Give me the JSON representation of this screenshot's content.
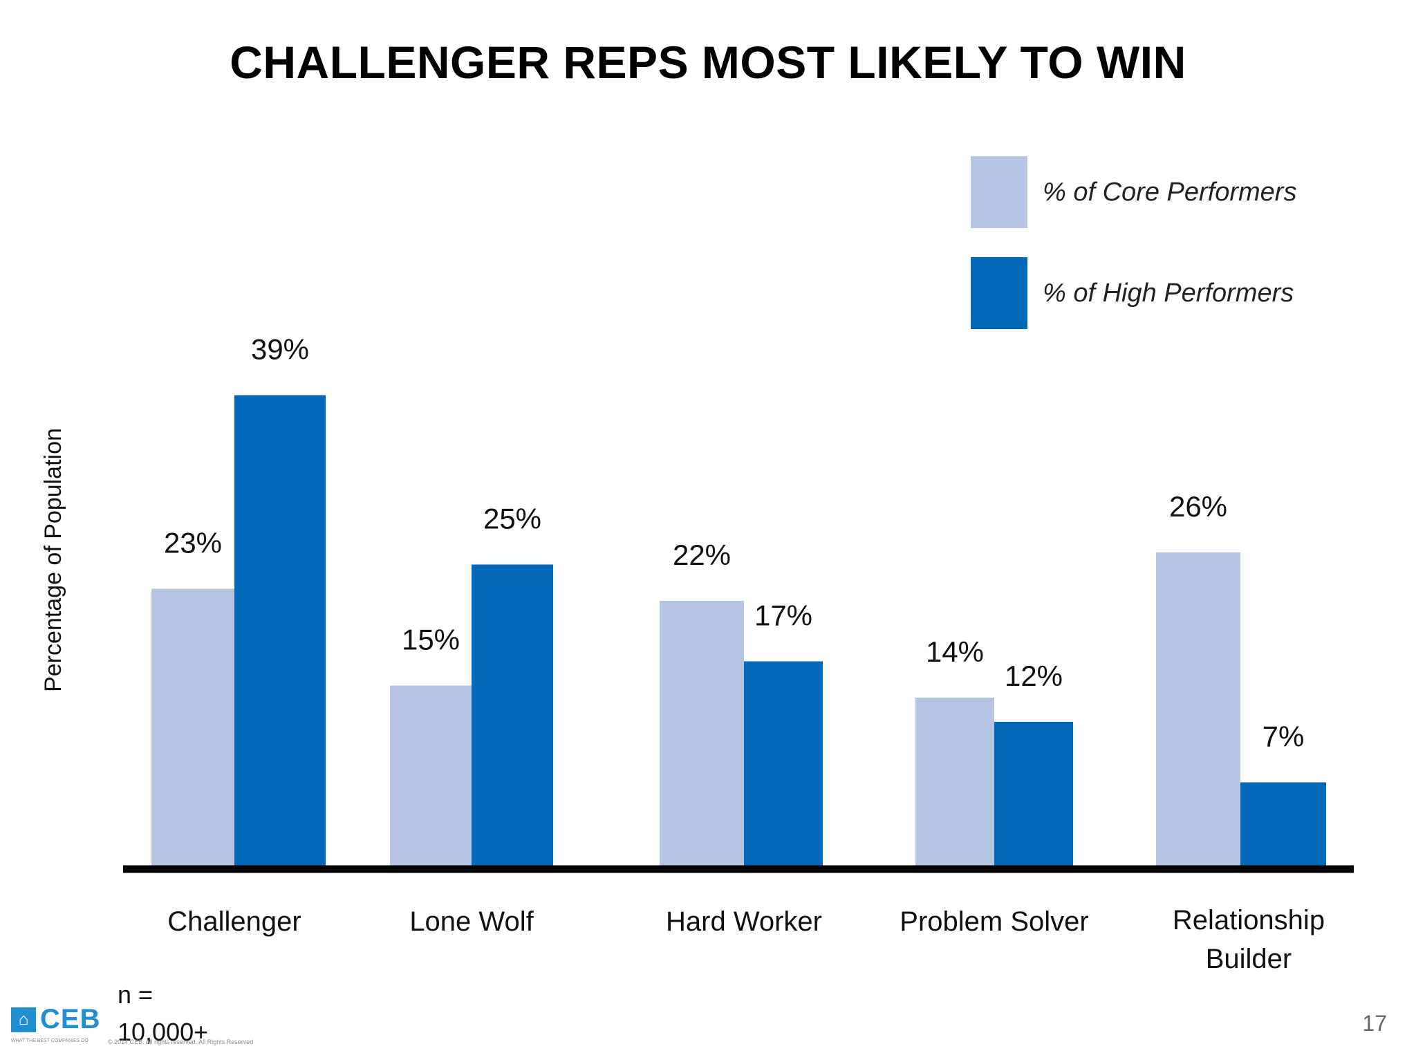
{
  "slide": {
    "title": "CHALLENGER REPS MOST LIKELY TO WIN",
    "page_number": "17",
    "n_label": "n =",
    "n_value": "10,000+",
    "logo": {
      "text": "CEB",
      "icon": "building-icon",
      "tagline": "WHAT THE BEST COMPANIES DO",
      "copyright": "© 2014 CEB. All rights reserved. All Rights Reserved"
    }
  },
  "colors": {
    "core": "#b6c4e4",
    "high": "#0369b8",
    "axis": "#000000",
    "logo": "#1f8fd1"
  },
  "chart_data": {
    "type": "bar",
    "title": "CHALLENGER REPS MOST LIKELY TO WIN",
    "xlabel": "",
    "ylabel": "Percentage of Population",
    "categories": [
      "Challenger",
      "Lone Wolf",
      "Hard Worker",
      "Problem Solver",
      "Relationship Builder"
    ],
    "category_lines": [
      [
        "Challenger"
      ],
      [
        "Lone Wolf"
      ],
      [
        "Hard Worker"
      ],
      [
        "Problem Solver"
      ],
      [
        "Relationship",
        "Builder"
      ]
    ],
    "series": [
      {
        "name": "% of Core Performers",
        "values": [
          23,
          15,
          22,
          14,
          26
        ],
        "labels": [
          "23%",
          "15%",
          "22%",
          "14%",
          "26%"
        ]
      },
      {
        "name": "% of High Performers",
        "values": [
          39,
          25,
          17,
          12,
          7
        ],
        "labels": [
          "39%",
          "25%",
          "17%",
          "12%",
          "7%"
        ]
      }
    ],
    "ylim": [
      0,
      40
    ],
    "grid": false,
    "legend_position": "top-right",
    "y_axis_visible": false
  }
}
